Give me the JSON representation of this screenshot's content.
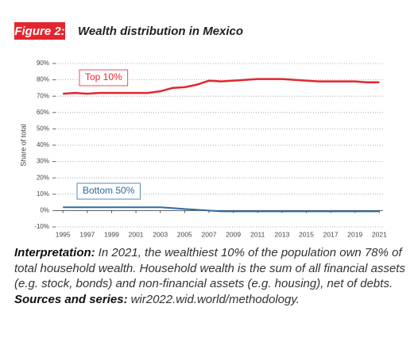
{
  "figure_label": "Figure 2:",
  "chart_data": {
    "type": "line",
    "title": "Wealth distribution in Mexico",
    "y_label": "Share of total",
    "x": [
      1995,
      1996,
      1997,
      1998,
      1999,
      2000,
      2001,
      2002,
      2003,
      2004,
      2005,
      2006,
      2007,
      2008,
      2009,
      2010,
      2011,
      2012,
      2013,
      2014,
      2015,
      2016,
      2017,
      2018,
      2019,
      2020,
      2021
    ],
    "series": [
      {
        "name": "Top 10%",
        "color": "#e3262e",
        "values": [
          71.5,
          72,
          71.5,
          72,
          72,
          72,
          72,
          72,
          73,
          75,
          75.5,
          77,
          79.5,
          79,
          79.5,
          80,
          80.5,
          80.5,
          80.5,
          80,
          79.5,
          79,
          79,
          79,
          79,
          78.5,
          78.5
        ]
      },
      {
        "name": "Bottom 50%",
        "color": "#2f6aa3",
        "values": [
          2,
          2,
          2,
          2,
          2,
          2,
          2,
          2,
          2,
          1.5,
          1,
          0.5,
          0,
          -0.5,
          -0.5,
          -0.5,
          -0.5,
          -0.5,
          -0.5,
          -0.5,
          -0.5,
          -0.5,
          -0.5,
          -0.5,
          -0.5,
          -0.5,
          -0.5
        ]
      }
    ],
    "xlim": [
      1994.4,
      2021.3
    ],
    "xticks": [
      1995,
      1997,
      1999,
      2001,
      2003,
      2005,
      2007,
      2009,
      2011,
      2013,
      2015,
      2017,
      2019,
      2021
    ],
    "ylim": [
      -10,
      90
    ],
    "yticks": [
      {
        "value": -10,
        "label": "-10%"
      },
      {
        "value": 0,
        "label": "0%"
      },
      {
        "value": 10,
        "label": "10%"
      },
      {
        "value": 20,
        "label": "20%"
      },
      {
        "value": 30,
        "label": "30%"
      },
      {
        "value": 40,
        "label": "40%"
      },
      {
        "value": 50,
        "label": "50%"
      },
      {
        "value": 60,
        "label": "60%"
      },
      {
        "value": 70,
        "label": "70%"
      },
      {
        "value": 80,
        "label": "80%"
      },
      {
        "value": 90,
        "label": "90%"
      }
    ],
    "grid": true
  },
  "notes": [
    {
      "label": "Interpretation:",
      "text": "In 2021, the wealthiest 10% of the population own 78% of total household wealth. Household wealth is the sum of all financial assets (e.g. stock, bonds) and non-financial assets (e.g. housing), net of debts."
    },
    {
      "label": "Sources and series:",
      "text": "wir2022.wid.world/methodology."
    }
  ]
}
